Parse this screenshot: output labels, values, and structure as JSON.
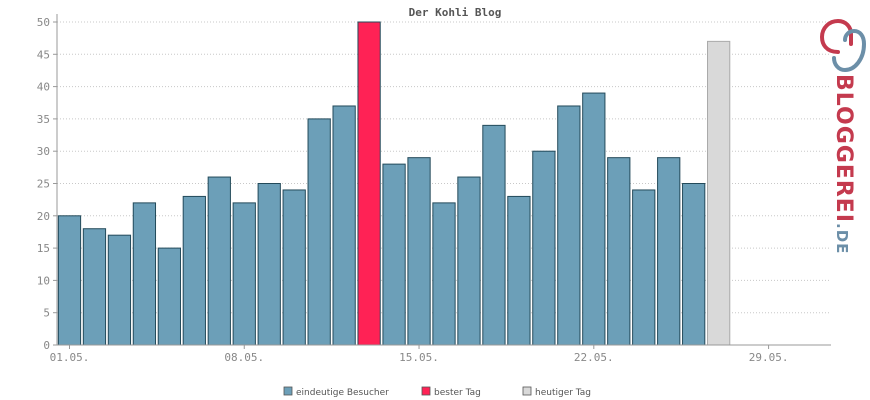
{
  "chart_data": {
    "type": "bar",
    "title": "Der Kohli Blog",
    "xlabel": "",
    "ylabel": "",
    "ylim": [
      0,
      50
    ],
    "yticks": [
      0,
      5,
      10,
      15,
      20,
      25,
      30,
      35,
      40,
      45,
      50
    ],
    "grid": true,
    "legend_position": "bottom",
    "day_count": 31,
    "x_tick_labels": [
      {
        "day": 1,
        "label": "01.05."
      },
      {
        "day": 8,
        "label": "08.05."
      },
      {
        "day": 15,
        "label": "15.05."
      },
      {
        "day": 22,
        "label": "22.05."
      },
      {
        "day": 29,
        "label": "29.05."
      }
    ],
    "series": [
      {
        "name": "eindeutige Besucher",
        "values": [
          20,
          18,
          17,
          22,
          15,
          23,
          26,
          22,
          25,
          24,
          35,
          37,
          50,
          28,
          29,
          22,
          26,
          34,
          23,
          30,
          37,
          39,
          29,
          24,
          29,
          25,
          47
        ]
      }
    ],
    "best_day": 13,
    "today_day": 27,
    "colors": {
      "bar": "#6c9fb8",
      "best": "#ff2255",
      "today": "#d9d9d9",
      "bar_border": "#234a5a",
      "today_border": "#aaaaaa"
    },
    "legend": [
      {
        "label": "eindeutige Besucher",
        "color": "#6c9fb8"
      },
      {
        "label": "bester Tag",
        "color": "#ff2255"
      },
      {
        "label": "heutiger Tag",
        "color": "#d9d9d9"
      }
    ]
  },
  "logo": {
    "part1": "BLOGGEREI",
    "part2": ".DE",
    "color1": "#c43a4e",
    "color2": "#6c8fa8"
  }
}
